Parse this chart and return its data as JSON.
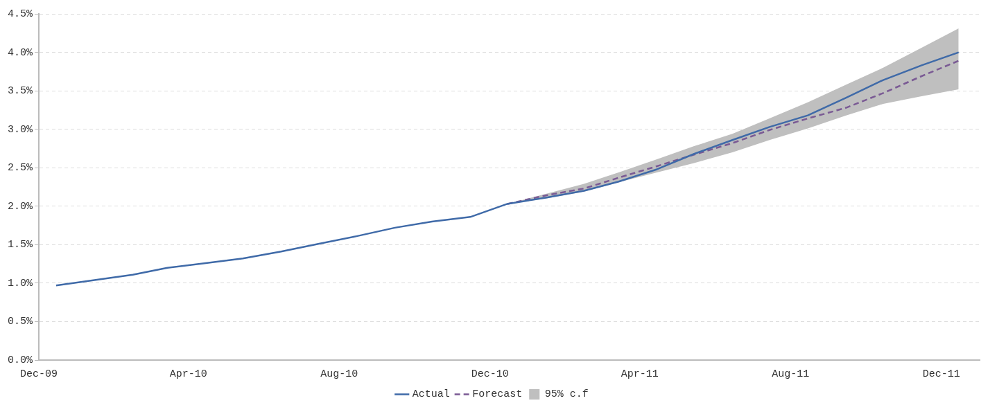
{
  "chart_data": {
    "type": "line",
    "x": [
      "2009-12-15",
      "2010-01-15",
      "2010-02-15",
      "2010-03-15",
      "2010-04-15",
      "2010-05-15",
      "2010-06-15",
      "2010-07-15",
      "2010-08-15",
      "2010-09-15",
      "2010-10-15",
      "2010-11-15",
      "2010-12-15",
      "2011-01-15",
      "2011-02-15",
      "2011-03-15",
      "2011-04-15",
      "2011-05-15",
      "2011-06-15",
      "2011-07-15",
      "2011-08-15",
      "2011-09-15",
      "2011-10-15",
      "2011-11-15",
      "2011-12-15"
    ],
    "series": [
      {
        "name": "Actual",
        "color": "#3f6aa8",
        "line_style": "solid",
        "values": [
          0.97,
          1.04,
          1.11,
          1.2,
          1.26,
          1.32,
          1.41,
          1.51,
          1.61,
          1.72,
          1.8,
          1.86,
          2.03,
          2.11,
          2.2,
          2.32,
          2.48,
          2.68,
          2.86,
          3.03,
          3.18,
          3.41,
          3.64,
          3.83,
          4.0
        ]
      },
      {
        "name": "Forecast",
        "color": "#7a5a94",
        "line_style": "dashed",
        "values": [
          null,
          null,
          null,
          null,
          null,
          null,
          null,
          null,
          null,
          null,
          null,
          null,
          2.03,
          2.14,
          2.23,
          2.37,
          2.52,
          2.67,
          2.82,
          2.99,
          3.14,
          3.28,
          3.47,
          3.69,
          3.89
        ]
      },
      {
        "name": "95% c.f",
        "type": "area",
        "color": "#bfbfbf",
        "values": [
          null,
          null,
          null,
          null,
          null,
          null,
          null,
          null,
          null,
          null,
          null,
          null,
          null,
          null,
          null,
          null,
          null,
          null,
          null,
          null,
          null,
          null,
          null,
          null,
          null
        ],
        "lower": [
          null,
          null,
          null,
          null,
          null,
          null,
          null,
          null,
          null,
          null,
          null,
          null,
          2.03,
          2.1,
          2.19,
          2.31,
          2.44,
          2.56,
          2.7,
          2.86,
          3.01,
          3.18,
          3.33,
          3.43,
          3.52
        ],
        "upper": [
          null,
          null,
          null,
          null,
          null,
          null,
          null,
          null,
          null,
          null,
          null,
          null,
          2.03,
          2.16,
          2.29,
          2.44,
          2.61,
          2.78,
          2.94,
          3.14,
          3.35,
          3.58,
          3.8,
          4.06,
          4.31
        ]
      }
    ],
    "xlim": [
      "2009-12-01",
      "2012-01-01"
    ],
    "xticks": [
      {
        "value": "2009-12-01",
        "label": "Dec-09"
      },
      {
        "value": "2010-04-01",
        "label": "Apr-10"
      },
      {
        "value": "2010-08-01",
        "label": "Aug-10"
      },
      {
        "value": "2010-12-01",
        "label": "Dec-10"
      },
      {
        "value": "2011-04-01",
        "label": "Apr-11"
      },
      {
        "value": "2011-08-01",
        "label": "Aug-11"
      },
      {
        "value": "2011-12-01",
        "label": "Dec-11"
      }
    ],
    "ylim": [
      0,
      4.5
    ],
    "yticks": [
      {
        "value": 0,
        "label": "0.0%"
      },
      {
        "value": 0.5,
        "label": "0.5%"
      },
      {
        "value": 1,
        "label": "1.0%"
      },
      {
        "value": 1.5,
        "label": "1.5%"
      },
      {
        "value": 2,
        "label": "2.0%"
      },
      {
        "value": 2.5,
        "label": "2.5%"
      },
      {
        "value": 3,
        "label": "3.0%"
      },
      {
        "value": 3.5,
        "label": "3.5%"
      },
      {
        "value": 4,
        "label": "4.0%"
      },
      {
        "value": 4.5,
        "label": "4.5%"
      }
    ],
    "grid": "y",
    "legend": "bottom",
    "marker": "none"
  }
}
